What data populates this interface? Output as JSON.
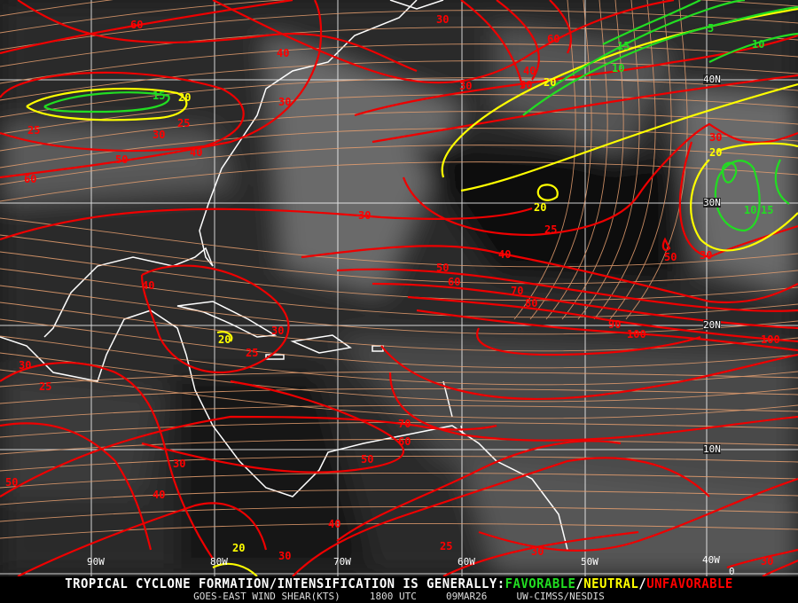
{
  "footer": {
    "headline_prefix": "TROPICAL CYCLONE FORMATION/INTENSIFICATION IS GENERALLY:",
    "favorable": "FAVORABLE",
    "sep1": "/",
    "neutral": "NEUTRAL",
    "sep2": "/",
    "unfavorable": "UNFAVORABLE",
    "product": "GOES-EAST WIND SHEAR(KTS)",
    "time": "1800 UTC",
    "date": "09MAR26",
    "source": "UW-CIMSS/NESDIS"
  },
  "colors": {
    "favorable": "#22dd22",
    "neutral": "#ffff00",
    "unfavorable": "#ff0000",
    "streamline": "#e8a070",
    "grid": "#ffffff",
    "coast": "#ffffff"
  },
  "longitude_labels": [
    "90W",
    "80W",
    "70W",
    "60W",
    "50W",
    "40W"
  ],
  "latitude_labels": [
    "40N",
    "30N",
    "20N",
    "10N",
    "0"
  ],
  "contour_labels": [
    {
      "text": "60",
      "level": "unfavorable"
    },
    {
      "text": "40",
      "level": "unfavorable"
    },
    {
      "text": "30",
      "level": "unfavorable"
    },
    {
      "text": "60",
      "level": "unfavorable"
    },
    {
      "text": "40",
      "level": "unfavorable"
    },
    {
      "text": "30",
      "level": "unfavorable"
    },
    {
      "text": "20",
      "level": "neutral"
    },
    {
      "text": "30",
      "level": "unfavorable"
    },
    {
      "text": "15",
      "level": "favorable"
    },
    {
      "text": "10",
      "level": "favorable"
    },
    {
      "text": "5",
      "level": "favorable"
    },
    {
      "text": "10",
      "level": "favorable"
    },
    {
      "text": "15",
      "level": "favorable"
    },
    {
      "text": "20",
      "level": "neutral"
    },
    {
      "text": "30",
      "level": "unfavorable"
    },
    {
      "text": "25",
      "level": "unfavorable"
    },
    {
      "text": "30",
      "level": "unfavorable"
    },
    {
      "text": "25",
      "level": "unfavorable"
    },
    {
      "text": "40",
      "level": "unfavorable"
    },
    {
      "text": "50",
      "level": "unfavorable"
    },
    {
      "text": "60",
      "level": "unfavorable"
    },
    {
      "text": "30",
      "level": "unfavorable"
    },
    {
      "text": "20",
      "level": "neutral"
    },
    {
      "text": "25",
      "level": "unfavorable"
    },
    {
      "text": "40",
      "level": "unfavorable"
    },
    {
      "text": "50",
      "level": "unfavorable"
    },
    {
      "text": "30",
      "level": "unfavorable"
    },
    {
      "text": "30",
      "level": "unfavorable"
    },
    {
      "text": "20",
      "level": "neutral"
    },
    {
      "text": "10",
      "level": "favorable"
    },
    {
      "text": "15",
      "level": "favorable"
    },
    {
      "text": "50",
      "level": "unfavorable"
    },
    {
      "text": "60",
      "level": "unfavorable"
    },
    {
      "text": "70",
      "level": "unfavorable"
    },
    {
      "text": "80",
      "level": "unfavorable"
    },
    {
      "text": "90",
      "level": "unfavorable"
    },
    {
      "text": "100",
      "level": "unfavorable"
    },
    {
      "text": "100",
      "level": "unfavorable"
    },
    {
      "text": "40",
      "level": "unfavorable"
    },
    {
      "text": "20",
      "level": "neutral"
    },
    {
      "text": "30",
      "level": "unfavorable"
    },
    {
      "text": "25",
      "level": "unfavorable"
    },
    {
      "text": "30",
      "level": "unfavorable"
    },
    {
      "text": "25",
      "level": "unfavorable"
    },
    {
      "text": "70",
      "level": "unfavorable"
    },
    {
      "text": "60",
      "level": "unfavorable"
    },
    {
      "text": "50",
      "level": "unfavorable"
    },
    {
      "text": "30",
      "level": "unfavorable"
    },
    {
      "text": "50",
      "level": "unfavorable"
    },
    {
      "text": "40",
      "level": "unfavorable"
    },
    {
      "text": "40",
      "level": "unfavorable"
    },
    {
      "text": "30",
      "level": "unfavorable"
    },
    {
      "text": "25",
      "level": "unfavorable"
    },
    {
      "text": "30",
      "level": "unfavorable"
    },
    {
      "text": "20",
      "level": "neutral"
    },
    {
      "text": "30",
      "level": "unfavorable"
    }
  ]
}
